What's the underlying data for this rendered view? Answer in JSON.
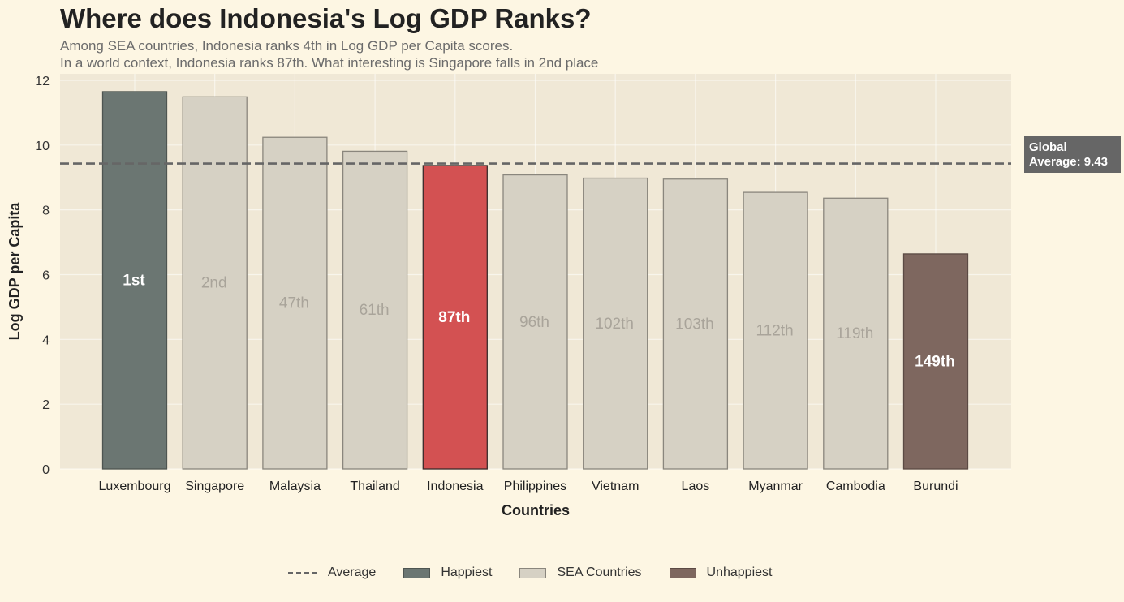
{
  "chart_data": {
    "type": "bar",
    "title": "Where does Indonesia's Log GDP Ranks?",
    "subtitle": [
      "Among SEA countries, Indonesia ranks 4th in Log GDP per Capita scores.",
      "In a world context, Indonesia ranks 87th. What interesting is Singapore falls in 2nd place"
    ],
    "xlabel": "Countries",
    "ylabel": "Log GDP per Capita",
    "ylim": [
      0,
      12.2
    ],
    "yticks": [
      0,
      2,
      4,
      6,
      8,
      10,
      12
    ],
    "grid": true,
    "categories": [
      "Luxembourg",
      "Singapore",
      "Malaysia",
      "Thailand",
      "Indonesia",
      "Philippines",
      "Vietnam",
      "Laos",
      "Myanmar",
      "Cambodia",
      "Burundi"
    ],
    "values": [
      11.65,
      11.49,
      10.24,
      9.81,
      9.37,
      9.08,
      8.98,
      8.95,
      8.54,
      8.36,
      6.64
    ],
    "ranks": [
      "1st",
      "2nd",
      "47th",
      "61th",
      "87th",
      "96th",
      "102th",
      "103th",
      "112th",
      "119th",
      "149th"
    ],
    "groups": [
      "Happiest",
      "SEA Countries",
      "SEA Countries",
      "SEA Countries",
      "Indonesia",
      "SEA Countries",
      "SEA Countries",
      "SEA Countries",
      "SEA Countries",
      "SEA Countries",
      "Unhappiest"
    ],
    "average": 9.43,
    "average_label": "Global Average: 9.43",
    "legend": {
      "placement": "bottom-center",
      "entries": [
        "Average",
        "Happiest",
        "SEA Countries",
        "Unhappiest"
      ]
    },
    "colors": {
      "Happiest": "#6b7672",
      "SEA Countries": "#d6d1c4",
      "Indonesia": "#d35152",
      "Unhappiest": "#7e675f",
      "average_line": "#666666",
      "plot_bg": "#f0e8d6",
      "page_bg": "#fdf6e3"
    }
  }
}
